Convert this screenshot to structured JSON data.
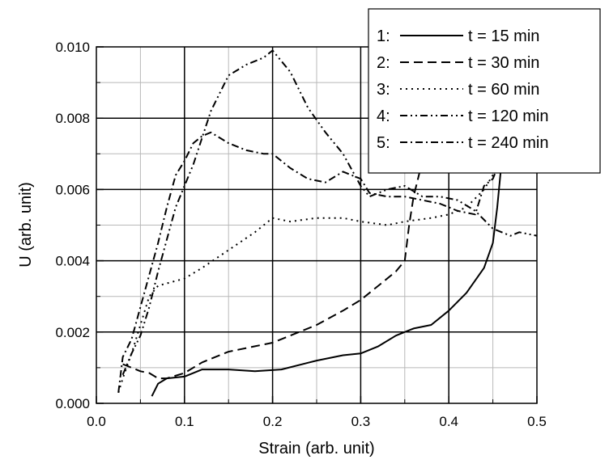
{
  "chart_data": {
    "type": "line",
    "title": "",
    "xlabel": "Strain (arb. unit)",
    "ylabel": "U (arb. unit)",
    "xlim": [
      0.0,
      0.5
    ],
    "ylim": [
      0.0,
      0.01
    ],
    "xticks": [
      0.0,
      0.1,
      0.2,
      0.3,
      0.4,
      0.5
    ],
    "xtick_labels": [
      "0.0",
      "0.1",
      "0.2",
      "0.3",
      "0.4",
      "0.5"
    ],
    "yticks": [
      0.0,
      0.002,
      0.004,
      0.006,
      0.008,
      0.01
    ],
    "ytick_labels": [
      "0.000",
      "0.002",
      "0.004",
      "0.006",
      "0.008",
      "0.010"
    ],
    "grid": true,
    "legend_position": "top-right",
    "series": [
      {
        "name": "t = 15 min",
        "legend_index": "1:",
        "style": "solid",
        "points": [
          [
            0.063,
            0.0002
          ],
          [
            0.07,
            0.00055
          ],
          [
            0.08,
            0.0007
          ],
          [
            0.1,
            0.00075
          ],
          [
            0.12,
            0.00095
          ],
          [
            0.15,
            0.00095
          ],
          [
            0.18,
            0.0009
          ],
          [
            0.21,
            0.00095
          ],
          [
            0.25,
            0.0012
          ],
          [
            0.28,
            0.00135
          ],
          [
            0.3,
            0.0014
          ],
          [
            0.32,
            0.0016
          ],
          [
            0.34,
            0.0019
          ],
          [
            0.36,
            0.0021
          ],
          [
            0.38,
            0.0022
          ],
          [
            0.4,
            0.0026
          ],
          [
            0.42,
            0.0031
          ],
          [
            0.44,
            0.0038
          ],
          [
            0.45,
            0.0045
          ],
          [
            0.455,
            0.0055
          ],
          [
            0.46,
            0.0068
          ]
        ]
      },
      {
        "name": "t = 30 min",
        "legend_index": "2:",
        "style": "dashed",
        "points": [
          [
            0.03,
            0.0011
          ],
          [
            0.04,
            0.001
          ],
          [
            0.05,
            0.0009
          ],
          [
            0.06,
            0.00085
          ],
          [
            0.07,
            0.0007
          ],
          [
            0.08,
            0.0007
          ],
          [
            0.1,
            0.00085
          ],
          [
            0.12,
            0.00115
          ],
          [
            0.15,
            0.00145
          ],
          [
            0.18,
            0.0016
          ],
          [
            0.2,
            0.0017
          ],
          [
            0.22,
            0.0019
          ],
          [
            0.25,
            0.0022
          ],
          [
            0.28,
            0.0026
          ],
          [
            0.3,
            0.0029
          ],
          [
            0.32,
            0.0033
          ],
          [
            0.34,
            0.0037
          ],
          [
            0.35,
            0.004
          ],
          [
            0.355,
            0.005
          ],
          [
            0.36,
            0.0058
          ],
          [
            0.365,
            0.0063
          ],
          [
            0.37,
            0.0068
          ]
        ]
      },
      {
        "name": "t = 60 min",
        "legend_index": "3:",
        "style": "dotted",
        "points": [
          [
            0.025,
            0.0003
          ],
          [
            0.03,
            0.0007
          ],
          [
            0.04,
            0.0014
          ],
          [
            0.05,
            0.0022
          ],
          [
            0.06,
            0.003
          ],
          [
            0.07,
            0.0033
          ],
          [
            0.1,
            0.0035
          ],
          [
            0.12,
            0.0038
          ],
          [
            0.15,
            0.0043
          ],
          [
            0.18,
            0.0048
          ],
          [
            0.2,
            0.0052
          ],
          [
            0.22,
            0.0051
          ],
          [
            0.25,
            0.0052
          ],
          [
            0.28,
            0.0052
          ],
          [
            0.3,
            0.0051
          ],
          [
            0.33,
            0.005
          ],
          [
            0.35,
            0.0051
          ],
          [
            0.38,
            0.0052
          ],
          [
            0.4,
            0.0053
          ],
          [
            0.42,
            0.0055
          ],
          [
            0.44,
            0.006
          ],
          [
            0.455,
            0.0066
          ]
        ]
      },
      {
        "name": "t = 120 min",
        "legend_index": "4:",
        "style": "dash-dot-dot",
        "points": [
          [
            0.03,
            0.0008
          ],
          [
            0.04,
            0.0014
          ],
          [
            0.05,
            0.0019
          ],
          [
            0.06,
            0.0027
          ],
          [
            0.07,
            0.0037
          ],
          [
            0.09,
            0.0055
          ],
          [
            0.11,
            0.0067
          ],
          [
            0.13,
            0.0082
          ],
          [
            0.15,
            0.0092
          ],
          [
            0.17,
            0.0095
          ],
          [
            0.19,
            0.0097
          ],
          [
            0.2,
            0.0099
          ],
          [
            0.22,
            0.0093
          ],
          [
            0.24,
            0.0083
          ],
          [
            0.26,
            0.0076
          ],
          [
            0.28,
            0.007
          ],
          [
            0.3,
            0.0061
          ],
          [
            0.31,
            0.0058
          ],
          [
            0.33,
            0.006
          ],
          [
            0.35,
            0.0061
          ],
          [
            0.37,
            0.0058
          ],
          [
            0.39,
            0.0058
          ],
          [
            0.41,
            0.0057
          ],
          [
            0.43,
            0.0054
          ],
          [
            0.45,
            0.0049
          ],
          [
            0.47,
            0.0047
          ],
          [
            0.48,
            0.0048
          ],
          [
            0.5,
            0.0047
          ]
        ]
      },
      {
        "name": "t = 240 min",
        "legend_index": "5:",
        "style": "dash-dot",
        "points": [
          [
            0.025,
            0.0003
          ],
          [
            0.03,
            0.0013
          ],
          [
            0.04,
            0.0018
          ],
          [
            0.05,
            0.0027
          ],
          [
            0.06,
            0.0036
          ],
          [
            0.07,
            0.0045
          ],
          [
            0.08,
            0.0055
          ],
          [
            0.09,
            0.0064
          ],
          [
            0.1,
            0.0068
          ],
          [
            0.11,
            0.0073
          ],
          [
            0.12,
            0.0075
          ],
          [
            0.13,
            0.0076
          ],
          [
            0.15,
            0.0073
          ],
          [
            0.17,
            0.0071
          ],
          [
            0.19,
            0.007
          ],
          [
            0.2,
            0.007
          ],
          [
            0.22,
            0.0066
          ],
          [
            0.24,
            0.0063
          ],
          [
            0.26,
            0.0062
          ],
          [
            0.28,
            0.0065
          ],
          [
            0.3,
            0.0063
          ],
          [
            0.31,
            0.0059
          ],
          [
            0.33,
            0.0058
          ],
          [
            0.35,
            0.0058
          ],
          [
            0.37,
            0.0057
          ],
          [
            0.39,
            0.0056
          ],
          [
            0.41,
            0.0054
          ],
          [
            0.43,
            0.0053
          ],
          [
            0.44,
            0.0061
          ],
          [
            0.45,
            0.0063
          ],
          [
            0.455,
            0.0066
          ]
        ]
      }
    ]
  }
}
